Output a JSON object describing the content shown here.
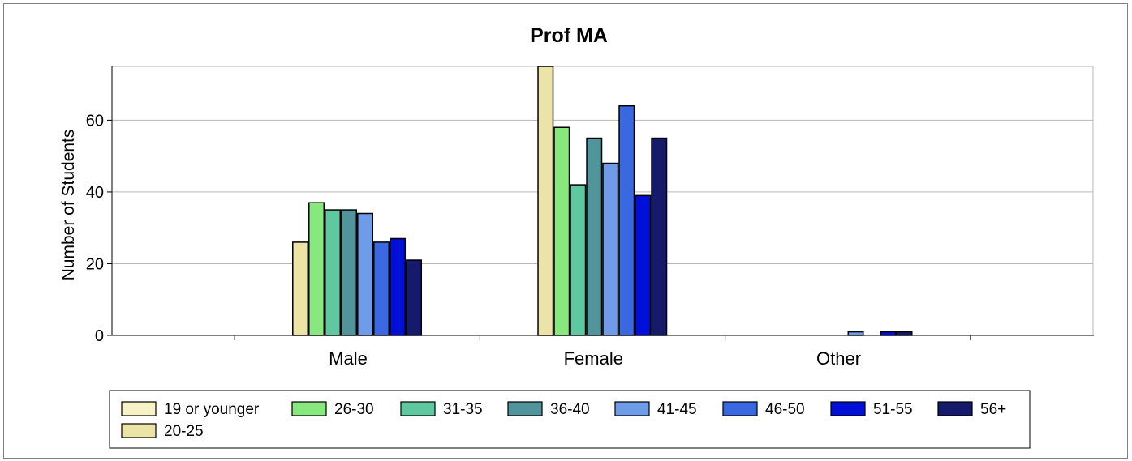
{
  "chart_data": {
    "type": "bar",
    "title": "Prof MA",
    "xlabel": "",
    "ylabel": "Number of Students",
    "ylim": [
      0,
      75
    ],
    "yticks": [
      0,
      20,
      40,
      60
    ],
    "grid": true,
    "legend_position": "bottom",
    "categories": [
      "Male",
      "Female",
      "Other"
    ],
    "series": [
      {
        "name": "19 or younger",
        "color": "#f7f3c6",
        "values": [
          0,
          0,
          0
        ]
      },
      {
        "name": "20-25",
        "color": "#ece4a6",
        "values": [
          26,
          75,
          0
        ]
      },
      {
        "name": "26-30",
        "color": "#87e87e",
        "values": [
          37,
          58,
          0
        ]
      },
      {
        "name": "31-35",
        "color": "#5ec8a0",
        "values": [
          35,
          42,
          0
        ]
      },
      {
        "name": "36-40",
        "color": "#52949b",
        "values": [
          35,
          55,
          0
        ]
      },
      {
        "name": "41-45",
        "color": "#6f9ce8",
        "values": [
          34,
          48,
          1
        ]
      },
      {
        "name": "46-50",
        "color": "#3a68e0",
        "values": [
          26,
          64,
          0
        ]
      },
      {
        "name": "51-55",
        "color": "#0010d8",
        "values": [
          27,
          39,
          1
        ]
      },
      {
        "name": "56+",
        "color": "#161a6a",
        "values": [
          21,
          55,
          1
        ]
      }
    ],
    "legend_order": [
      "19 or younger",
      "26-30",
      "31-35",
      "36-40",
      "41-45",
      "46-50",
      "51-55",
      "56+",
      "20-25"
    ]
  }
}
